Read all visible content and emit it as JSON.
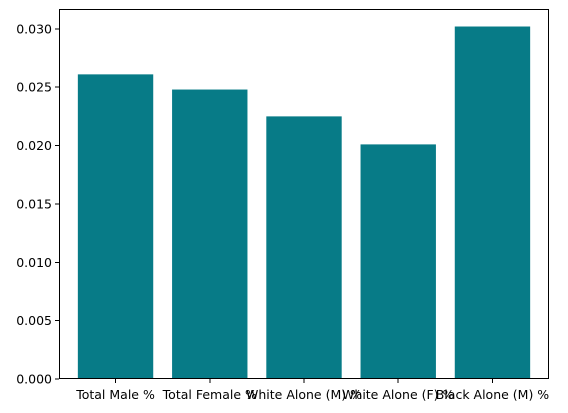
{
  "chart_data": {
    "type": "bar",
    "title": "",
    "xlabel": "",
    "ylabel": "",
    "categories": [
      "Total Male %",
      "Total Female %",
      "White Alone (M) %",
      "White Alone (F) %",
      "Black Alone (M) %"
    ],
    "values": [
      0.0261,
      0.0248,
      0.0225,
      0.0201,
      0.0302
    ],
    "ylim": [
      0,
      0.0317
    ],
    "yticks": [
      0.0,
      0.005,
      0.01,
      0.015,
      0.02,
      0.025,
      0.03
    ],
    "ytick_labels": [
      "0.000",
      "0.005",
      "0.010",
      "0.015",
      "0.020",
      "0.025",
      "0.030"
    ],
    "bar_color": "#077b87",
    "grid": false,
    "legend": "none"
  }
}
